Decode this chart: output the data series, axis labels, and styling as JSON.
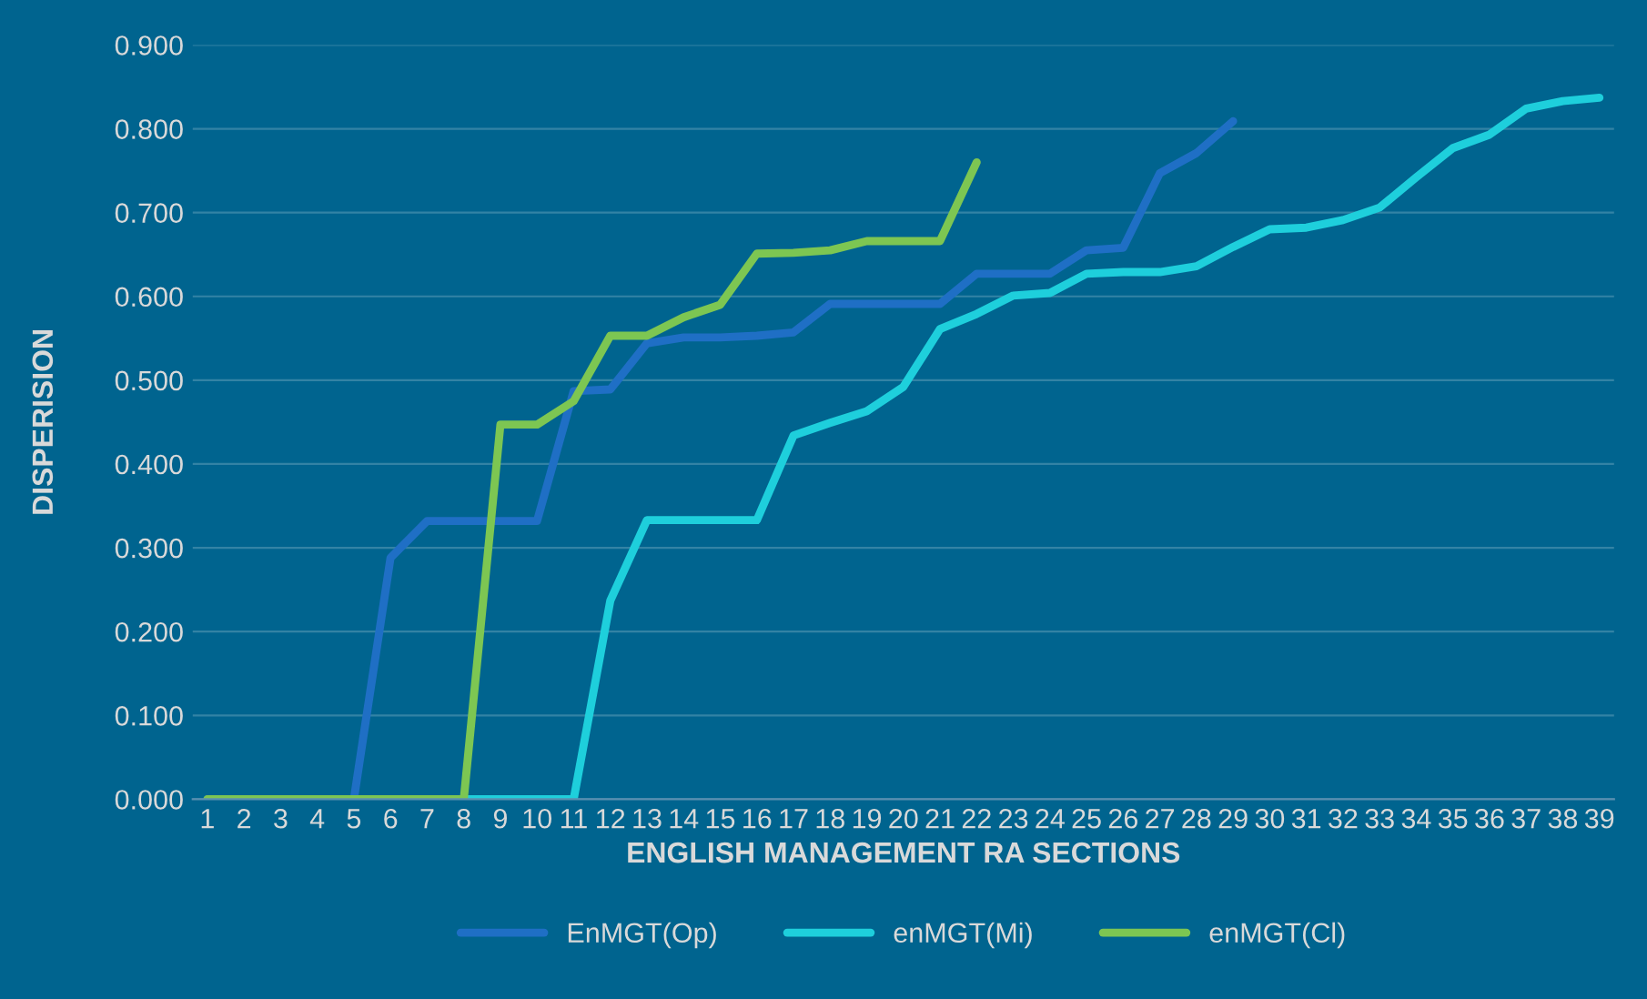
{
  "chart_data": {
    "type": "line",
    "xlabel": "ENGLISH MANAGEMENT RA SECTIONS",
    "ylabel": "DISPERISION",
    "categories": [
      "1",
      "2",
      "3",
      "4",
      "5",
      "6",
      "7",
      "8",
      "9",
      "10",
      "11",
      "12",
      "13",
      "14",
      "15",
      "16",
      "17",
      "18",
      "19",
      "20",
      "21",
      "22",
      "23",
      "24",
      "25",
      "26",
      "27",
      "28",
      "29",
      "30",
      "31",
      "32",
      "33",
      "34",
      "35",
      "36",
      "37",
      "38",
      "39"
    ],
    "series": [
      {
        "name": "EnMGT(Op)",
        "color": "#1f6fc5",
        "values": [
          0,
          0,
          0,
          0,
          0,
          0.288,
          0.332,
          0.332,
          0.332,
          0.332,
          0.487,
          0.489,
          0.544,
          0.551,
          0.551,
          0.553,
          0.557,
          0.591,
          0.591,
          0.591,
          0.591,
          0.627,
          0.627,
          0.627,
          0.655,
          0.658,
          0.747,
          0.771,
          0.809,
          null,
          null,
          null,
          null,
          null,
          null,
          null,
          null,
          null,
          null
        ]
      },
      {
        "name": "enMGT(Mi)",
        "color": "#1ecfdc",
        "values": [
          null,
          null,
          null,
          null,
          null,
          null,
          0,
          0,
          0,
          0,
          0,
          0.237,
          0.333,
          0.333,
          0.333,
          0.333,
          0.434,
          0.449,
          0.463,
          0.492,
          0.561,
          0.579,
          0.601,
          0.604,
          0.627,
          0.629,
          0.629,
          0.636,
          0.659,
          0.68,
          0.682,
          0.691,
          0.706,
          0.742,
          0.777,
          0.793,
          0.824,
          0.833,
          0.837
        ]
      },
      {
        "name": "enMGT(Cl)",
        "color": "#7dc652",
        "values": [
          0,
          0,
          0,
          0,
          0,
          0,
          0,
          0,
          0.447,
          0.447,
          0.475,
          0.553,
          0.553,
          0.575,
          0.59,
          0.651,
          0.652,
          0.655,
          0.666,
          0.666,
          0.666,
          0.76,
          null,
          null,
          null,
          null,
          null,
          null,
          null,
          null,
          null,
          null,
          null,
          null,
          null,
          null,
          null,
          null,
          null
        ]
      }
    ],
    "ylim": [
      0,
      0.9
    ],
    "yticks": [
      {
        "value": 0,
        "label": "0.000"
      },
      {
        "value": 0.1,
        "label": "0.100"
      },
      {
        "value": 0.2,
        "label": "0.200"
      },
      {
        "value": 0.3,
        "label": "0.300"
      },
      {
        "value": 0.4,
        "label": "0.400"
      },
      {
        "value": 0.5,
        "label": "0.500"
      },
      {
        "value": 0.6,
        "label": "0.600"
      },
      {
        "value": 0.7,
        "label": "0.700"
      },
      {
        "value": 0.8,
        "label": "0.800"
      },
      {
        "value": 0.9,
        "label": "0.900"
      }
    ],
    "grid": "y",
    "legend": "bottom",
    "marker": "none",
    "line_style": "solid"
  }
}
